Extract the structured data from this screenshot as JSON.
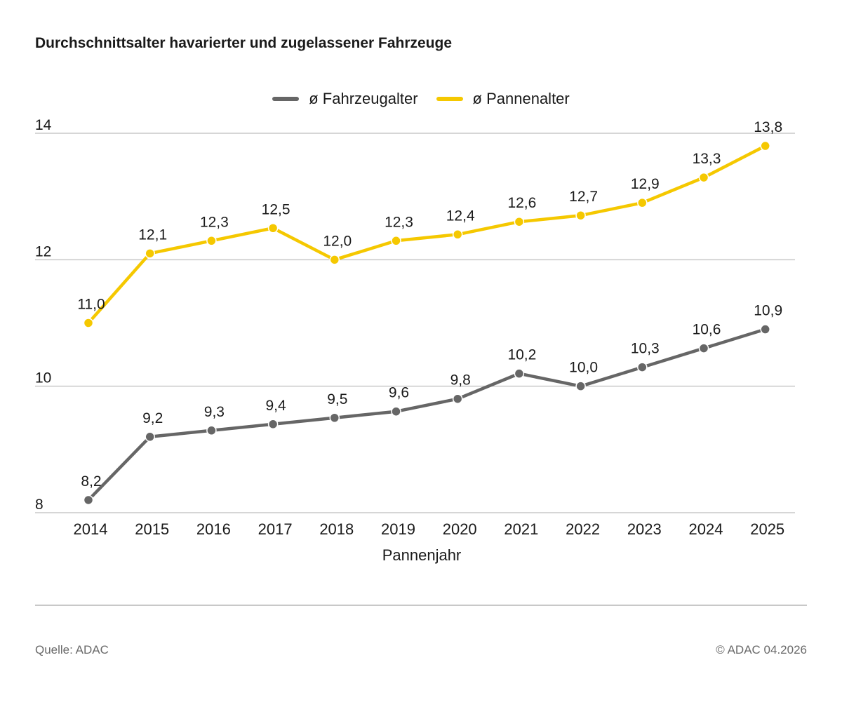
{
  "title": "Durchschnittsalter havarierter und zugelassener Fahrzeuge",
  "footer": {
    "source": "Quelle: ADAC",
    "copyright": "© ADAC 04.2026"
  },
  "colors": {
    "fahrzeugalter": "#666666",
    "pannenalter": "#f5c800",
    "grid": "#c8c8c8"
  },
  "chart_data": {
    "type": "line",
    "title": "Durchschnittsalter havarierter und zugelassener Fahrzeuge",
    "xlabel": "Pannenjahr",
    "ylabel": "",
    "x": [
      "2014",
      "2015",
      "2016",
      "2017",
      "2018",
      "2019",
      "2020",
      "2021",
      "2022",
      "2023",
      "2024",
      "2025"
    ],
    "ylim": [
      8,
      14
    ],
    "yticks": [
      8,
      10,
      12,
      14
    ],
    "grid": true,
    "legend_position": "top-center",
    "series": [
      {
        "name": "ø Fahrzeugalter",
        "color": "#666666",
        "values": [
          8.2,
          9.2,
          9.3,
          9.4,
          9.5,
          9.6,
          9.8,
          10.2,
          10.0,
          10.3,
          10.6,
          10.9
        ],
        "labels": [
          "8,2",
          "9,2",
          "9,3",
          "9,4",
          "9,5",
          "9,6",
          "9,8",
          "10,2",
          "10,0",
          "10,3",
          "10,6",
          "10,9"
        ]
      },
      {
        "name": "ø Pannenalter",
        "color": "#f5c800",
        "values": [
          11.0,
          12.1,
          12.3,
          12.5,
          12.0,
          12.3,
          12.4,
          12.6,
          12.7,
          12.9,
          13.3,
          13.8
        ],
        "labels": [
          "11,0",
          "12,1",
          "12,3",
          "12,5",
          "12,0",
          "12,3",
          "12,4",
          "12,6",
          "12,7",
          "12,9",
          "13,3",
          "13,8"
        ]
      }
    ]
  }
}
